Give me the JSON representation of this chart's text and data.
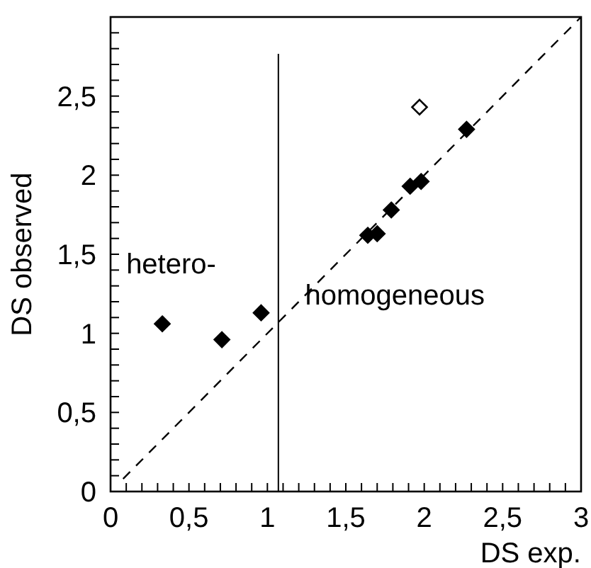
{
  "chart_data": {
    "type": "scatter",
    "xlabel": "DS exp.",
    "ylabel": "DS observed",
    "xlim": [
      0,
      3
    ],
    "ylim": [
      0,
      3
    ],
    "xticks": [
      {
        "value": 0,
        "label": "0"
      },
      {
        "value": 0.1,
        "label": null
      },
      {
        "value": 0.2,
        "label": null
      },
      {
        "value": 0.3,
        "label": null
      },
      {
        "value": 0.4,
        "label": null
      },
      {
        "value": 0.5,
        "label": "0,5"
      },
      {
        "value": 0.6,
        "label": null
      },
      {
        "value": 0.7,
        "label": null
      },
      {
        "value": 0.8,
        "label": null
      },
      {
        "value": 0.9,
        "label": null
      },
      {
        "value": 1,
        "label": "1"
      },
      {
        "value": 1.1,
        "label": null
      },
      {
        "value": 1.2,
        "label": null
      },
      {
        "value": 1.3,
        "label": null
      },
      {
        "value": 1.4,
        "label": null
      },
      {
        "value": 1.5,
        "label": "1,5"
      },
      {
        "value": 1.6,
        "label": null
      },
      {
        "value": 1.7,
        "label": null
      },
      {
        "value": 1.8,
        "label": null
      },
      {
        "value": 1.9,
        "label": null
      },
      {
        "value": 2,
        "label": "2"
      },
      {
        "value": 2.1,
        "label": null
      },
      {
        "value": 2.2,
        "label": null
      },
      {
        "value": 2.3,
        "label": null
      },
      {
        "value": 2.4,
        "label": null
      },
      {
        "value": 2.5,
        "label": "2,5"
      },
      {
        "value": 2.6,
        "label": null
      },
      {
        "value": 2.7,
        "label": null
      },
      {
        "value": 2.8,
        "label": null
      },
      {
        "value": 2.9,
        "label": null
      },
      {
        "value": 3,
        "label": "3"
      }
    ],
    "yticks": [
      {
        "value": 0,
        "label": "0"
      },
      {
        "value": 0.1,
        "label": null
      },
      {
        "value": 0.2,
        "label": null
      },
      {
        "value": 0.3,
        "label": null
      },
      {
        "value": 0.4,
        "label": null
      },
      {
        "value": 0.5,
        "label": "0,5"
      },
      {
        "value": 0.6,
        "label": null
      },
      {
        "value": 0.7,
        "label": null
      },
      {
        "value": 0.8,
        "label": null
      },
      {
        "value": 0.9,
        "label": null
      },
      {
        "value": 1,
        "label": "1"
      },
      {
        "value": 1.1,
        "label": null
      },
      {
        "value": 1.2,
        "label": null
      },
      {
        "value": 1.3,
        "label": null
      },
      {
        "value": 1.4,
        "label": null
      },
      {
        "value": 1.5,
        "label": "1,5"
      },
      {
        "value": 1.6,
        "label": null
      },
      {
        "value": 1.7,
        "label": null
      },
      {
        "value": 1.8,
        "label": null
      },
      {
        "value": 1.9,
        "label": null
      },
      {
        "value": 2,
        "label": "2"
      },
      {
        "value": 2.1,
        "label": null
      },
      {
        "value": 2.2,
        "label": null
      },
      {
        "value": 2.3,
        "label": null
      },
      {
        "value": 2.4,
        "label": null
      },
      {
        "value": 2.5,
        "label": "2,5"
      },
      {
        "value": 2.6,
        "label": null
      },
      {
        "value": 2.7,
        "label": null
      },
      {
        "value": 2.8,
        "label": null
      },
      {
        "value": 2.9,
        "label": null
      }
    ],
    "marker": "diamond",
    "grid": false,
    "series": [
      {
        "color": "#000000",
        "x": [
          0.33,
          0.71,
          0.96,
          1.64,
          1.7,
          1.79,
          1.91,
          1.98,
          2.27
        ],
        "values": [
          1.06,
          0.96,
          1.13,
          1.62,
          1.63,
          1.78,
          1.93,
          1.96,
          2.29
        ]
      },
      {
        "color": "#ffffff",
        "x": [
          1.97
        ],
        "values": [
          2.43
        ]
      },
      {
        "type": "line",
        "color": "#000000",
        "line_style": "dashed",
        "marker": "none",
        "x": [
          0.08,
          3
        ],
        "values": [
          0.08,
          3
        ]
      }
    ],
    "ref_lines": [
      {
        "axis": "x",
        "value": 1.07,
        "color": "#000000",
        "line_style": "solid"
      }
    ],
    "annotations": [
      "hetero-",
      "homogeneous"
    ]
  }
}
